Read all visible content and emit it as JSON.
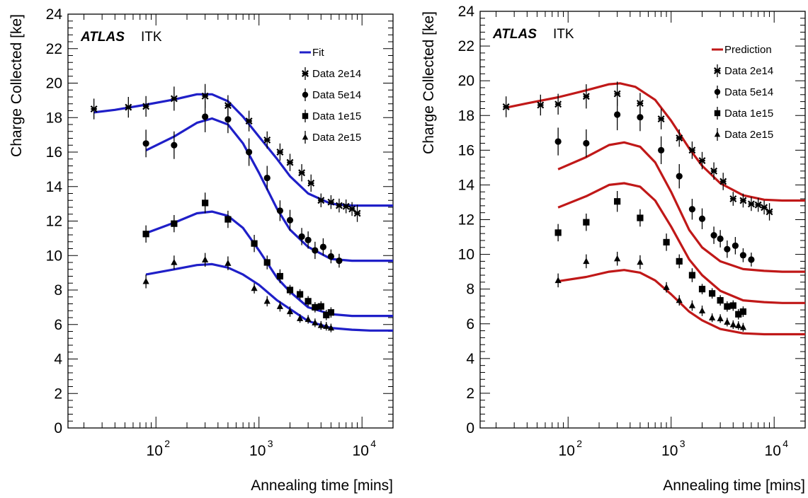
{
  "chart_data": [
    {
      "type": "scatter",
      "experiment_label": "ATLAS",
      "experiment_sublabel": "ITK",
      "xlabel": "Annealing time [mins]",
      "ylabel": "Charge Collected [ke]",
      "xscale": "log",
      "xlim": [
        14,
        20000
      ],
      "ylim": [
        0,
        24
      ],
      "yticks": [
        0,
        2,
        4,
        6,
        8,
        10,
        12,
        14,
        16,
        18,
        20,
        22,
        24
      ],
      "xtick_labels": [
        {
          "base": "10",
          "exp": "2",
          "value": 100
        },
        {
          "base": "10",
          "exp": "3",
          "value": 1000
        },
        {
          "base": "10",
          "exp": "4",
          "value": 10000
        }
      ],
      "legend_position": "top-right",
      "curve_label": "Fit",
      "curve_color": "#1f1fc8",
      "curves": [
        {
          "x": [
            25,
            40,
            80,
            150,
            250,
            350,
            500,
            700,
            1000,
            1500,
            2000,
            3000,
            5000,
            8000,
            12000,
            20000
          ],
          "y": [
            18.3,
            18.45,
            18.75,
            19.05,
            19.35,
            19.35,
            18.95,
            18.05,
            16.9,
            15.6,
            14.6,
            13.6,
            13.0,
            12.9,
            12.9,
            12.9
          ]
        },
        {
          "x": [
            80,
            150,
            250,
            350,
            500,
            700,
            1000,
            1500,
            2000,
            3000,
            5000,
            8000,
            12000,
            20000
          ],
          "y": [
            16.1,
            16.9,
            17.7,
            17.95,
            17.6,
            16.5,
            14.8,
            12.7,
            11.5,
            10.5,
            9.8,
            9.7,
            9.7,
            9.7
          ]
        },
        {
          "x": [
            80,
            150,
            250,
            350,
            500,
            700,
            1000,
            1500,
            2000,
            3000,
            5000,
            8000,
            12000,
            20000
          ],
          "y": [
            11.3,
            11.9,
            12.45,
            12.55,
            12.3,
            11.6,
            10.3,
            8.7,
            7.9,
            7.0,
            6.6,
            6.5,
            6.5,
            6.5
          ]
        },
        {
          "x": [
            80,
            150,
            250,
            350,
            500,
            700,
            1000,
            1500,
            2000,
            3000,
            5000,
            8000,
            12000,
            20000
          ],
          "y": [
            8.9,
            9.2,
            9.45,
            9.5,
            9.3,
            8.9,
            8.3,
            7.4,
            6.9,
            6.2,
            5.8,
            5.7,
            5.65,
            5.65
          ]
        }
      ],
      "series": [
        {
          "name": "Data 2e14",
          "marker": "star",
          "x": [
            25,
            54,
            80,
            150,
            300,
            500,
            800,
            1200,
            1600,
            2000,
            2600,
            3200,
            4000,
            5000,
            6000,
            7000,
            8000,
            9000
          ],
          "y": [
            18.5,
            18.6,
            18.65,
            19.1,
            19.25,
            18.7,
            17.8,
            16.7,
            16.0,
            15.4,
            14.8,
            14.2,
            13.2,
            13.1,
            12.9,
            12.85,
            12.7,
            12.45
          ],
          "err": [
            0.6,
            0.6,
            0.6,
            0.7,
            0.7,
            0.6,
            0.6,
            0.5,
            0.5,
            0.5,
            0.5,
            0.5,
            0.4,
            0.4,
            0.4,
            0.4,
            0.4,
            0.5
          ]
        },
        {
          "name": "Data 5e14",
          "marker": "circle",
          "x": [
            80,
            150,
            300,
            500,
            800,
            1200,
            1600,
            2000,
            2600,
            3000,
            3500,
            4200,
            5000,
            6000
          ],
          "y": [
            16.5,
            16.4,
            18.05,
            17.9,
            16.0,
            14.5,
            12.6,
            12.05,
            11.1,
            10.9,
            10.3,
            10.5,
            9.95,
            9.7
          ],
          "err": [
            0.8,
            0.8,
            0.9,
            0.8,
            0.8,
            0.7,
            0.6,
            0.6,
            0.5,
            0.5,
            0.5,
            0.5,
            0.4,
            0.4
          ]
        },
        {
          "name": "Data 1e15",
          "marker": "square",
          "x": [
            80,
            150,
            300,
            500,
            900,
            1200,
            1600,
            2000,
            2500,
            3000,
            3500,
            4000,
            4500,
            5000
          ],
          "y": [
            11.25,
            11.85,
            13.05,
            12.1,
            10.7,
            9.6,
            8.8,
            8.0,
            7.75,
            7.35,
            7.0,
            7.05,
            6.55,
            6.7
          ],
          "err": [
            0.5,
            0.5,
            0.6,
            0.5,
            0.5,
            0.4,
            0.4,
            0.3,
            0.3,
            0.3,
            0.3,
            0.3,
            0.3,
            0.3
          ]
        },
        {
          "name": "Data 2e15",
          "marker": "triangle",
          "x": [
            80,
            150,
            300,
            500,
            900,
            1200,
            1600,
            2000,
            2500,
            3000,
            3500,
            4000,
            4500,
            5000
          ],
          "y": [
            8.5,
            9.6,
            9.75,
            9.55,
            8.1,
            7.35,
            7.05,
            6.75,
            6.35,
            6.3,
            6.1,
            5.95,
            5.9,
            5.8
          ],
          "err": [
            0.4,
            0.4,
            0.4,
            0.4,
            0.3,
            0.3,
            0.3,
            0.3,
            0.25,
            0.25,
            0.25,
            0.25,
            0.25,
            0.25
          ]
        }
      ]
    },
    {
      "type": "scatter",
      "experiment_label": "ATLAS",
      "experiment_sublabel": "ITK",
      "xlabel": "Annealing time [mins]",
      "ylabel": "Charge Collected [ke]",
      "xscale": "log",
      "xlim": [
        14,
        20000
      ],
      "ylim": [
        0,
        24
      ],
      "yticks": [
        0,
        2,
        4,
        6,
        8,
        10,
        12,
        14,
        16,
        18,
        20,
        22,
        24
      ],
      "xtick_labels": [
        {
          "base": "10",
          "exp": "2",
          "value": 100
        },
        {
          "base": "10",
          "exp": "3",
          "value": 1000
        },
        {
          "base": "10",
          "exp": "4",
          "value": 10000
        }
      ],
      "legend_position": "top-right",
      "curve_label": "Prediction",
      "curve_color": "#c01818",
      "curves": [
        {
          "x": [
            25,
            40,
            80,
            150,
            250,
            320,
            450,
            700,
            1000,
            1500,
            2000,
            3000,
            5000,
            8000,
            12000,
            20000
          ],
          "y": [
            18.45,
            18.7,
            19.05,
            19.45,
            19.8,
            19.85,
            19.65,
            18.9,
            17.7,
            16.1,
            15.1,
            14.1,
            13.4,
            13.15,
            13.1,
            13.1
          ]
        },
        {
          "x": [
            80,
            150,
            250,
            350,
            500,
            700,
            1000,
            1500,
            2000,
            3000,
            5000,
            8000,
            12000,
            20000
          ],
          "y": [
            14.9,
            15.6,
            16.3,
            16.45,
            16.2,
            15.3,
            13.6,
            11.4,
            10.4,
            9.6,
            9.15,
            9.05,
            9.0,
            9.0
          ]
        },
        {
          "x": [
            80,
            150,
            250,
            350,
            500,
            700,
            1000,
            1500,
            2000,
            3000,
            5000,
            8000,
            12000,
            20000
          ],
          "y": [
            12.7,
            13.35,
            14.0,
            14.1,
            13.9,
            13.1,
            11.6,
            9.7,
            8.8,
            7.9,
            7.35,
            7.25,
            7.2,
            7.2
          ]
        },
        {
          "x": [
            80,
            150,
            250,
            350,
            500,
            700,
            1000,
            1500,
            2000,
            3000,
            5000,
            8000,
            12000,
            20000
          ],
          "y": [
            8.45,
            8.7,
            9.0,
            9.1,
            8.95,
            8.5,
            7.7,
            6.7,
            6.2,
            5.7,
            5.45,
            5.4,
            5.4,
            5.4
          ]
        }
      ],
      "series": [
        {
          "name": "Data 2e14",
          "marker": "star",
          "x": [
            25,
            54,
            80,
            150,
            300,
            500,
            800,
            1200,
            1600,
            2000,
            2600,
            3200,
            4000,
            5000,
            6000,
            7000,
            8000,
            9000
          ],
          "y": [
            18.5,
            18.6,
            18.65,
            19.1,
            19.25,
            18.7,
            17.8,
            16.7,
            16.0,
            15.4,
            14.8,
            14.2,
            13.2,
            13.1,
            12.9,
            12.85,
            12.7,
            12.45
          ],
          "err": [
            0.6,
            0.6,
            0.6,
            0.7,
            0.7,
            0.6,
            0.6,
            0.5,
            0.5,
            0.5,
            0.5,
            0.5,
            0.4,
            0.4,
            0.4,
            0.4,
            0.4,
            0.5
          ]
        },
        {
          "name": "Data 5e14",
          "marker": "circle",
          "x": [
            80,
            150,
            300,
            500,
            800,
            1200,
            1600,
            2000,
            2600,
            3000,
            3500,
            4200,
            5000,
            6000
          ],
          "y": [
            16.5,
            16.4,
            18.05,
            17.9,
            16.0,
            14.5,
            12.6,
            12.05,
            11.1,
            10.9,
            10.3,
            10.5,
            9.95,
            9.7
          ],
          "err": [
            0.8,
            0.8,
            0.9,
            0.8,
            0.8,
            0.7,
            0.6,
            0.6,
            0.5,
            0.5,
            0.5,
            0.5,
            0.4,
            0.4
          ]
        },
        {
          "name": "Data 1e15",
          "marker": "square",
          "x": [
            80,
            150,
            300,
            500,
            900,
            1200,
            1600,
            2000,
            2500,
            3000,
            3500,
            4000,
            4500,
            5000
          ],
          "y": [
            11.25,
            11.85,
            13.05,
            12.1,
            10.7,
            9.6,
            8.8,
            8.0,
            7.75,
            7.35,
            7.0,
            7.05,
            6.55,
            6.7
          ],
          "err": [
            0.5,
            0.5,
            0.6,
            0.5,
            0.5,
            0.4,
            0.4,
            0.3,
            0.3,
            0.3,
            0.3,
            0.3,
            0.3,
            0.3
          ]
        },
        {
          "name": "Data 2e15",
          "marker": "triangle",
          "x": [
            80,
            150,
            300,
            500,
            900,
            1200,
            1600,
            2000,
            2500,
            3000,
            3500,
            4000,
            4500,
            5000
          ],
          "y": [
            8.5,
            9.6,
            9.75,
            9.55,
            8.1,
            7.35,
            7.05,
            6.75,
            6.35,
            6.3,
            6.1,
            5.95,
            5.9,
            5.8
          ],
          "err": [
            0.4,
            0.4,
            0.4,
            0.4,
            0.3,
            0.3,
            0.3,
            0.3,
            0.25,
            0.25,
            0.25,
            0.25,
            0.25,
            0.25
          ]
        }
      ]
    }
  ]
}
